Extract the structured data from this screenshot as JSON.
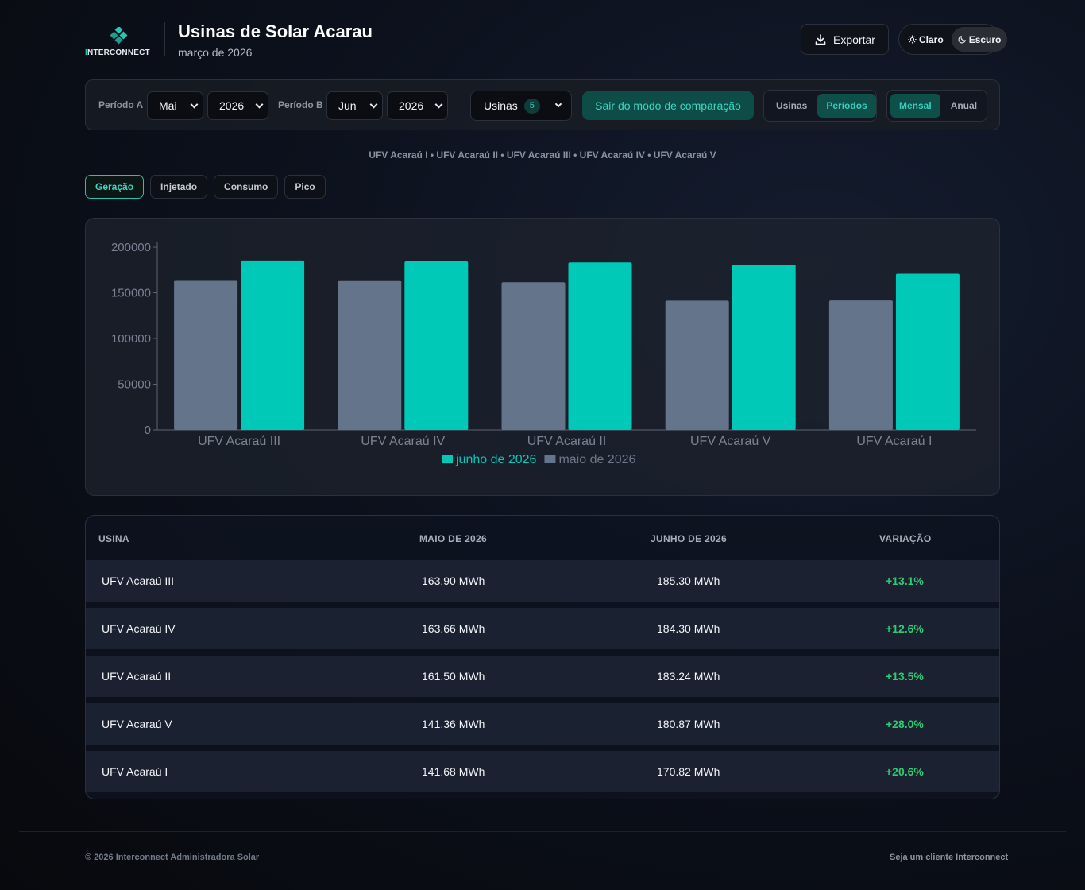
{
  "header": {
    "logo_text_accent": "I",
    "logo_text_rest": "NTERCONNECT",
    "title": "Usinas de Solar Acarau",
    "subtitle": "março de 2026",
    "export_label": "Exportar",
    "theme": {
      "light_label": "Claro",
      "dark_label": "Escuro",
      "active": "dark"
    }
  },
  "toolbar": {
    "period_a_label": "Período A",
    "period_a_month": "Mai",
    "period_a_year": "2026",
    "period_b_label": "Período B",
    "period_b_month": "Jun",
    "period_b_year": "2026",
    "usinas_label": "Usinas",
    "usinas_count": "5",
    "compare_label": "Sair do modo de comparação",
    "mode_usinas": "Usinas",
    "mode_periodos": "Períodos",
    "gran_mensal": "Mensal",
    "gran_anual": "Anual"
  },
  "plant_list": "UFV Acaraú I • UFV Acaraú II • UFV Acaraú III • UFV Acaraú IV • UFV Acaraú V",
  "tabs": [
    {
      "label": "Geração",
      "active": true
    },
    {
      "label": "Injetado",
      "active": false
    },
    {
      "label": "Consumo",
      "active": false
    },
    {
      "label": "Pico",
      "active": false
    }
  ],
  "colors": {
    "series_a": "#64748b",
    "series_b": "#00c9b7",
    "accent": "#39d6c2",
    "positive": "#2ecc71"
  },
  "chart_data": {
    "type": "bar",
    "categories": [
      "UFV Acaraú III",
      "UFV Acaraú IV",
      "UFV Acaraú II",
      "UFV Acaraú V",
      "UFV Acaraú I"
    ],
    "series": [
      {
        "name": "maio de 2026",
        "values": [
          163900,
          163660,
          161500,
          141360,
          141680
        ]
      },
      {
        "name": "junho de 2026",
        "values": [
          185300,
          184300,
          183240,
          180870,
          170820
        ]
      }
    ],
    "yticks": [
      "0",
      "50000",
      "100000",
      "150000",
      "200000"
    ],
    "ylim": [
      0,
      200000
    ],
    "legend": [
      "junho de 2026",
      "maio de 2026"
    ],
    "legend_position": "bottom",
    "grid": false
  },
  "table": {
    "headers": [
      "USINA",
      "MAIO DE 2026",
      "JUNHO DE 2026",
      "VARIAÇÃO"
    ],
    "rows": [
      {
        "usina": "UFV Acaraú III",
        "a": "163.90 MWh",
        "b": "185.30 MWh",
        "var": "+13.1%"
      },
      {
        "usina": "UFV Acaraú IV",
        "a": "163.66 MWh",
        "b": "184.30 MWh",
        "var": "+12.6%"
      },
      {
        "usina": "UFV Acaraú II",
        "a": "161.50 MWh",
        "b": "183.24 MWh",
        "var": "+13.5%"
      },
      {
        "usina": "UFV Acaraú V",
        "a": "141.36 MWh",
        "b": "180.87 MWh",
        "var": "+28.0%"
      },
      {
        "usina": "UFV Acaraú I",
        "a": "141.68 MWh",
        "b": "170.82 MWh",
        "var": "+20.6%"
      }
    ]
  },
  "footer": {
    "copyright": "© 2026 Interconnect Administradora Solar",
    "cta": "Seja um cliente Interconnect"
  }
}
